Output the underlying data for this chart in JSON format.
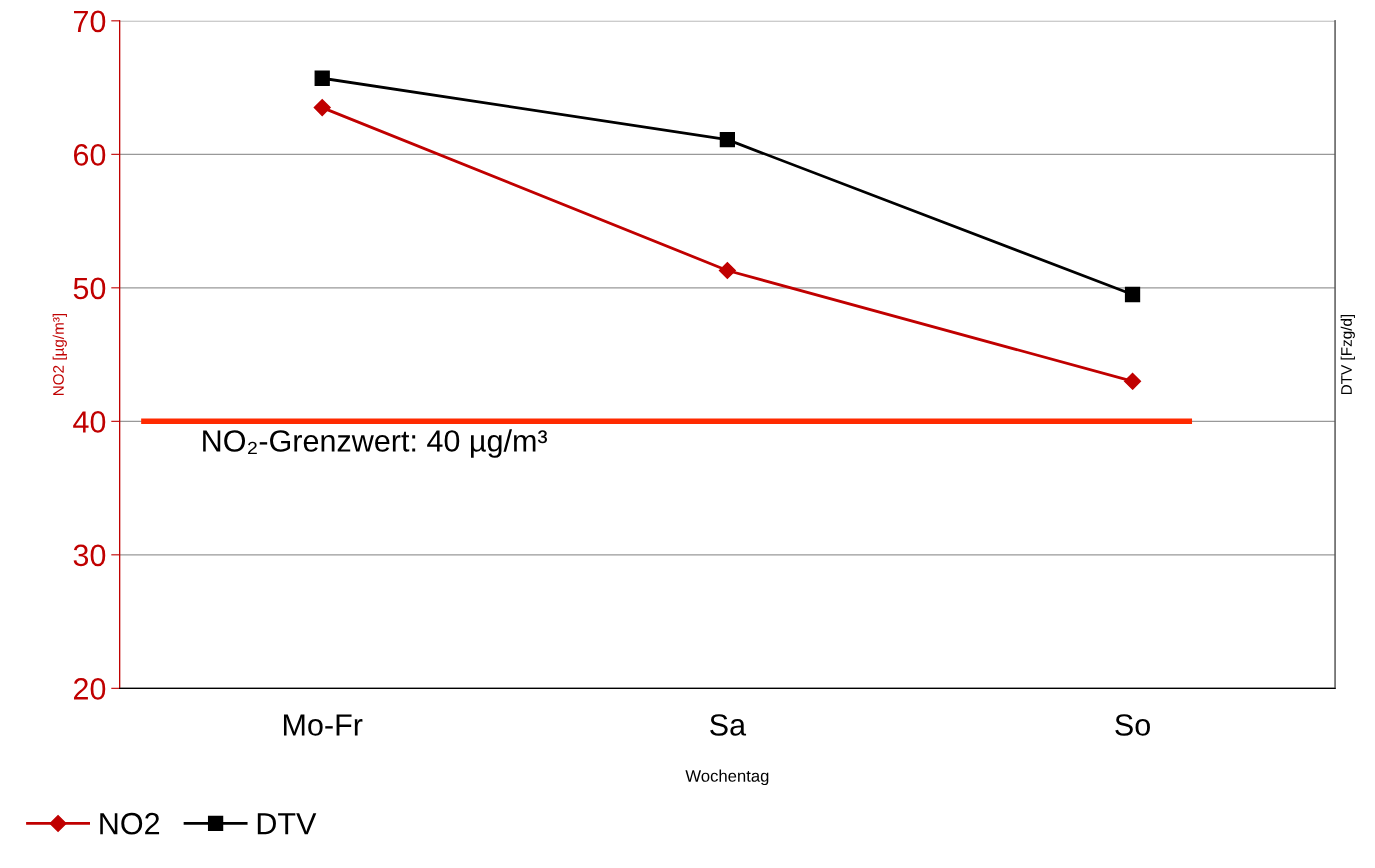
{
  "chart_data": {
    "type": "line",
    "xlabel": "Wochentag",
    "ylabel": "NO2 [µg/m³]",
    "y2label": "DTV [Fzg/d]",
    "categories": [
      "Mo-Fr",
      "Sa",
      "So"
    ],
    "series": [
      {
        "name": "NO2",
        "color": "#c00000",
        "values": [
          63.5,
          51.3,
          43.0
        ],
        "marker": "diamond"
      },
      {
        "name": "DTV",
        "color": "#000000",
        "values": [
          65.7,
          61.1,
          49.5
        ],
        "marker": "square"
      }
    ],
    "ylim": [
      20,
      70
    ],
    "yticks": [
      20,
      30,
      40,
      50,
      60,
      70
    ],
    "ref_lines": [
      {
        "axis": "y",
        "value": 40,
        "label": "NO₂-Grenzwert: 40 µg/m³",
        "color": "#ff2a00",
        "line_style": "solid"
      }
    ],
    "grid": "y",
    "legend": "bottom left",
    "line_style": "solid"
  }
}
